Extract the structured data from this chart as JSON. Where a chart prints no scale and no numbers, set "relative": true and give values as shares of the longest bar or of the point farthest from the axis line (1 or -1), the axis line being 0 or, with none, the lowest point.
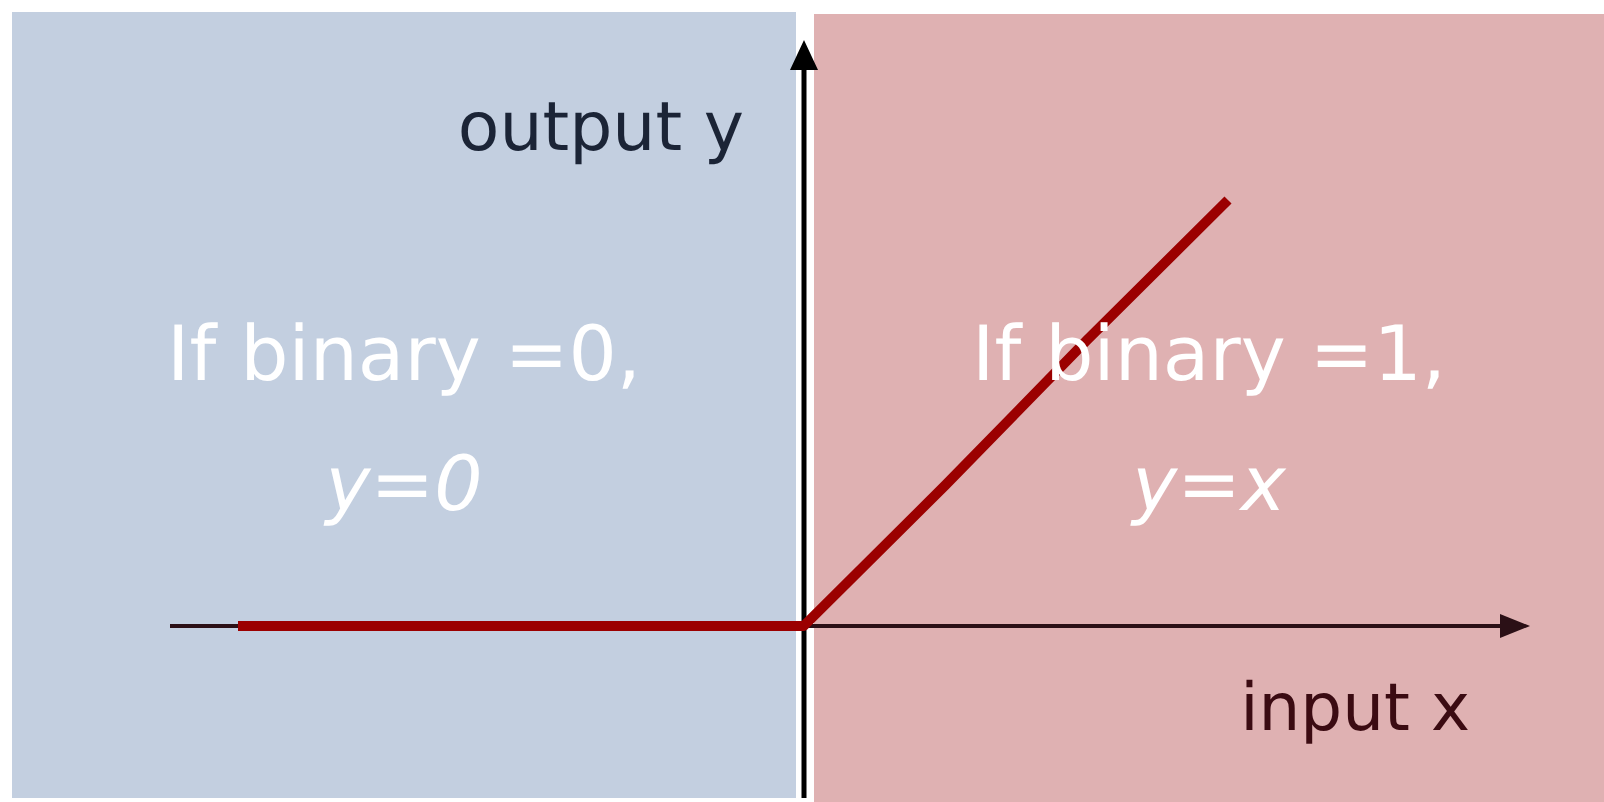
{
  "chart_data": {
    "type": "line",
    "xlabel": "input x",
    "ylabel": "output y",
    "categories": [
      null,
      null,
      null,
      null,
      null,
      null,
      null,
      null
    ],
    "values": [
      0,
      0,
      0,
      0,
      0,
      0.33,
      0.67,
      1
    ],
    "color": "#9b0000",
    "relative": true,
    "annotations": [
      "If binary =0,\ny=0",
      "If binary =1,\ny=x"
    ]
  }
}
